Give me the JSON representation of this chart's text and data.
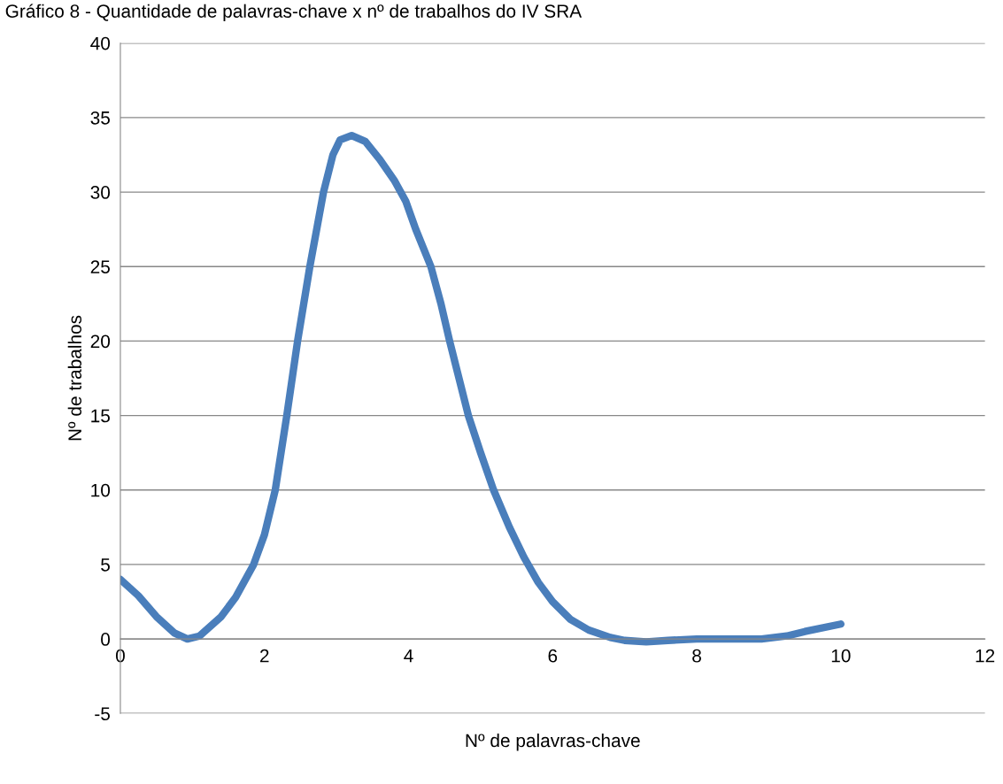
{
  "chart_data": {
    "type": "line",
    "title": "Gráfico 8 - Quantidade de palavras-chave x nº de trabalhos do IV SRA",
    "xlabel": "Nº de palavras-chave",
    "ylabel": "Nº de trabalhos",
    "x": [
      0,
      0.25,
      0.5,
      0.75,
      0.93,
      1.1,
      1.4,
      1.6,
      1.85,
      2.0,
      2.15,
      2.31,
      2.46,
      2.63,
      2.82,
      2.95,
      3.05,
      3.21,
      3.4,
      3.6,
      3.8,
      3.96,
      4.1,
      4.31,
      4.45,
      4.57,
      4.7,
      4.83,
      5.0,
      5.18,
      5.4,
      5.6,
      5.8,
      6.0,
      6.25,
      6.5,
      6.8,
      7.0,
      7.3,
      7.6,
      8.0,
      8.5,
      8.9,
      9.25,
      9.5,
      10
    ],
    "series": [
      {
        "color": "#4a7ebb",
        "values": [
          4,
          2.9,
          1.5,
          0.4,
          0,
          0.2,
          1.5,
          2.8,
          5,
          7,
          10,
          15,
          20,
          25,
          30,
          32.5,
          33.5,
          33.8,
          33.4,
          32.2,
          30.8,
          29.4,
          27.5,
          25,
          22.5,
          20,
          17.5,
          15,
          12.5,
          10,
          7.5,
          5.5,
          3.8,
          2.5,
          1.3,
          0.6,
          0.1,
          -0.1,
          -0.2,
          -0.1,
          0,
          0,
          0,
          0.2,
          0.5,
          1
        ]
      }
    ],
    "xlim": [
      0,
      12
    ],
    "xticks": [
      0,
      2,
      4,
      6,
      8,
      10,
      12
    ],
    "ylim": [
      -5,
      40
    ],
    "yticks": [
      -5,
      0,
      5,
      10,
      15,
      20,
      25,
      30,
      35,
      40
    ],
    "grid": "y",
    "legend": false,
    "marker": "none",
    "line_style": "solid"
  }
}
